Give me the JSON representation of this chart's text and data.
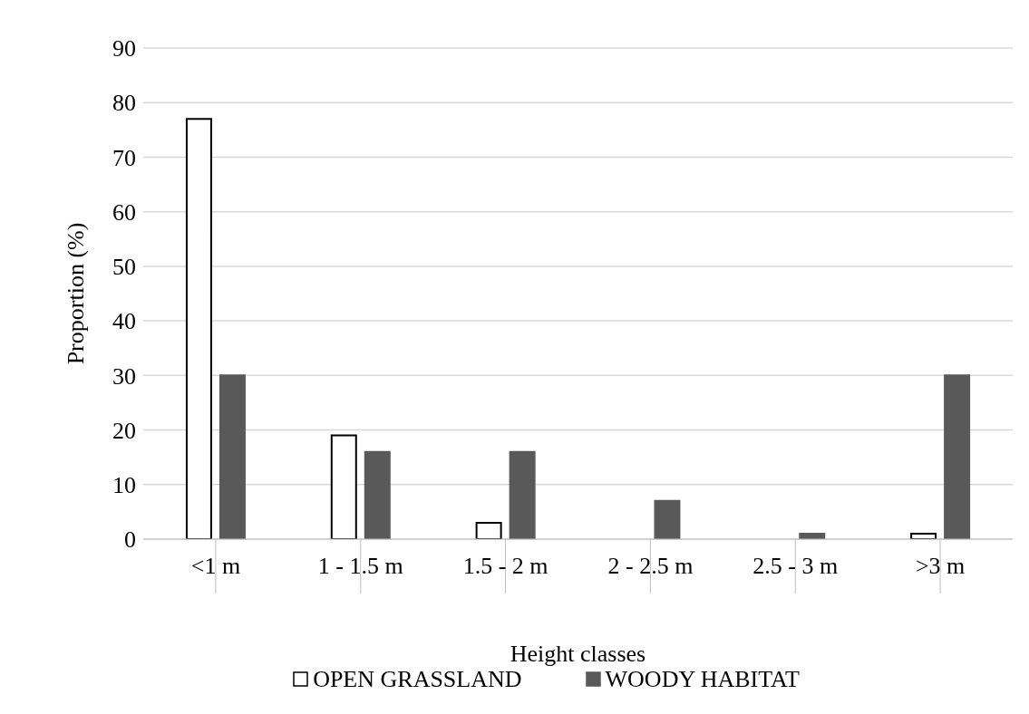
{
  "chart_data": {
    "type": "bar",
    "xlabel": "Height classes",
    "ylabel": "Proportion (%)",
    "categories": [
      "<1 m",
      "1 - 1.5 m",
      "1.5 - 2 m",
      "2 - 2.5 m",
      "2.5 - 3 m",
      ">3 m"
    ],
    "series": [
      {
        "name": "OPEN GRASSLAND",
        "color": "#ffffff",
        "values": [
          77,
          19,
          3,
          0,
          0,
          1
        ]
      },
      {
        "name": "WOODY HABITAT",
        "color": "#595959",
        "values": [
          30,
          16,
          16,
          7,
          1,
          30
        ]
      }
    ],
    "ylim": [
      0,
      90
    ],
    "yticks": [
      0,
      10,
      20,
      30,
      40,
      50,
      60,
      70,
      80,
      90
    ],
    "grid": "y",
    "legend": "bottom"
  }
}
